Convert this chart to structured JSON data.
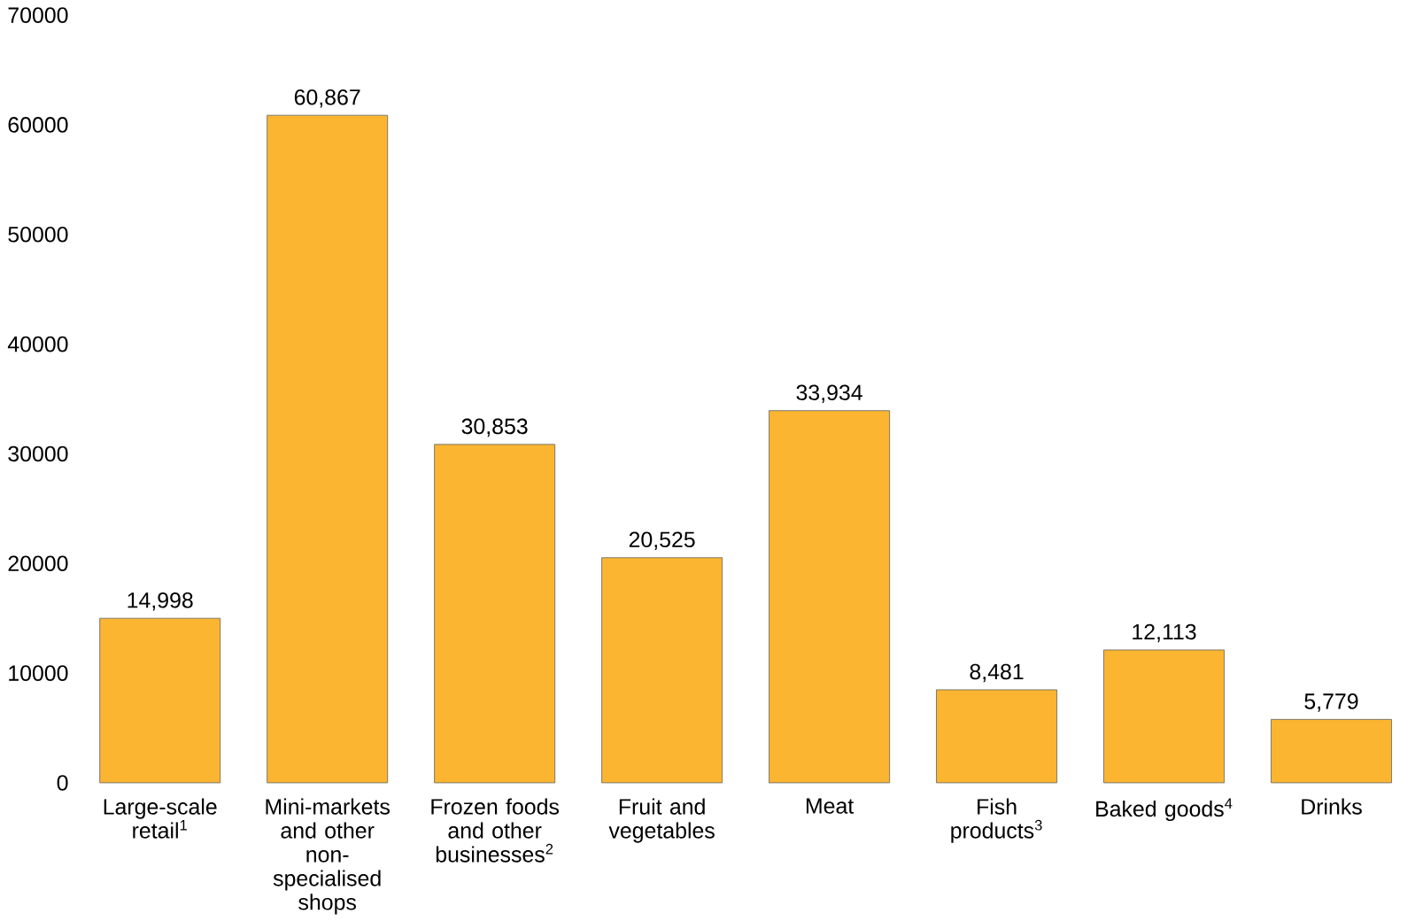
{
  "chart_data": {
    "type": "bar",
    "categories": [
      "Large-scale retail$^{1}$",
      "Mini-markets and other non-specialised shops",
      "Frozen foods and other businesses$^{2}$",
      "Fruit and vegetables",
      "Meat",
      "Fish products$^{3}$",
      "Baked goods$^{4}$",
      "Drinks"
    ],
    "values": [
      14998,
      60867,
      30853,
      20525,
      33934,
      8481,
      12113,
      5779
    ],
    "value_labels": [
      "14,998",
      "60,867",
      "30,853",
      "20,525",
      "33,934",
      "8,481",
      "12,113",
      "5,779"
    ],
    "color": "#fbb530",
    "ylim": [
      0,
      70000
    ],
    "yticks": [
      0,
      10000,
      20000,
      30000,
      40000,
      50000,
      60000,
      70000
    ]
  }
}
